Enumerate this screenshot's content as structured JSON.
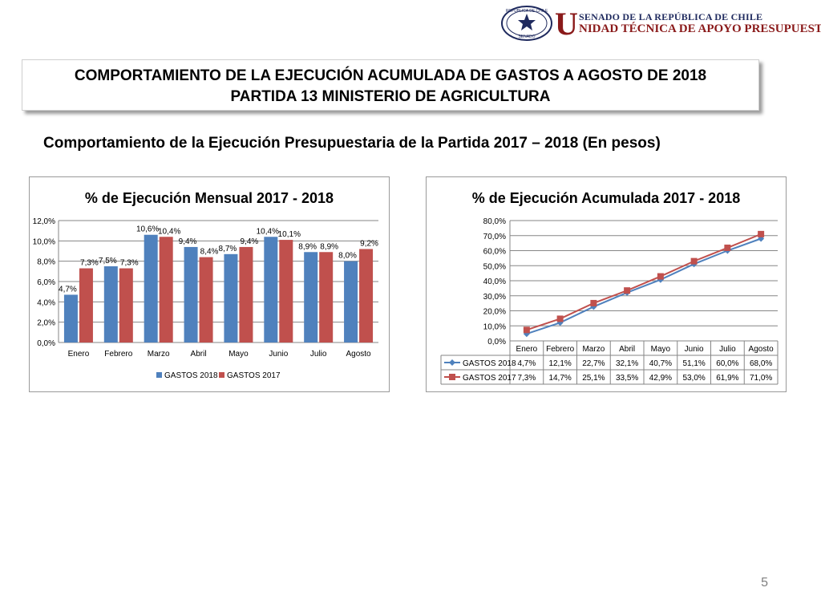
{
  "header": {
    "senado": "SENADO DE LA REPÚBLICA DE CHILE",
    "unit_initial": "U",
    "unit_rest": "NIDAD TÉCNICA DE APOYO PRESUPUESTARIO",
    "seal_top": "REPÚBLICA DE CHILE",
    "seal_bottom": "SENADO"
  },
  "title": {
    "line1": "COMPORTAMIENTO DE LA EJECUCIÓN ACUMULADA DE GASTOS A AGOSTO DE 2018",
    "line2": "PARTIDA 13 MINISTERIO DE AGRICULTURA"
  },
  "subtitle": "Comportamiento de la Ejecución Presupuestaria de la Partida 2017 – 2018 (En pesos)",
  "page_number": "5",
  "colors": {
    "gastos_2018": "#4f81bd",
    "gastos_2017": "#c0504d",
    "grid": "#868686"
  },
  "chart_data": [
    {
      "type": "bar",
      "title": "% de Ejecución Mensual 2017 - 2018",
      "categories": [
        "Enero",
        "Febrero",
        "Marzo",
        "Abril",
        "Mayo",
        "Junio",
        "Julio",
        "Agosto"
      ],
      "series": [
        {
          "name": "GASTOS 2018",
          "values": [
            4.7,
            7.5,
            10.6,
            9.4,
            8.7,
            10.4,
            8.9,
            8.0
          ],
          "labels": [
            "4,7%",
            "7,5%",
            "10,6%",
            "9,4%",
            "8,7%",
            "10,4%",
            "8,9%",
            "8,0%"
          ]
        },
        {
          "name": "GASTOS 2017",
          "values": [
            7.3,
            7.3,
            10.4,
            8.4,
            9.4,
            10.1,
            8.9,
            9.2
          ],
          "labels": [
            "7,3%",
            "7,3%",
            "10,4%",
            "8,4%",
            "9,4%",
            "10,1%",
            "8,9%",
            "9,2%"
          ]
        }
      ],
      "ylim": [
        0,
        12
      ],
      "yticks": [
        0,
        2,
        4,
        6,
        8,
        10,
        12
      ],
      "ytick_labels": [
        "0,0%",
        "2,0%",
        "4,0%",
        "6,0%",
        "8,0%",
        "10,0%",
        "12,0%"
      ],
      "grid": true,
      "legend": "bottom"
    },
    {
      "type": "line",
      "title": "% de Ejecución Acumulada 2017 - 2018",
      "categories": [
        "Enero",
        "Febrero",
        "Marzo",
        "Abril",
        "Mayo",
        "Junio",
        "Julio",
        "Agosto"
      ],
      "series": [
        {
          "name": "GASTOS 2018",
          "values": [
            4.7,
            12.1,
            22.7,
            32.1,
            40.7,
            51.1,
            60.0,
            68.0
          ],
          "labels": [
            "4,7%",
            "12,1%",
            "22,7%",
            "32,1%",
            "40,7%",
            "51,1%",
            "60,0%",
            "68,0%"
          ],
          "marker": "diamond"
        },
        {
          "name": "GASTOS 2017",
          "values": [
            7.3,
            14.7,
            25.1,
            33.5,
            42.9,
            53.0,
            61.9,
            71.0
          ],
          "labels": [
            "7,3%",
            "14,7%",
            "25,1%",
            "33,5%",
            "42,9%",
            "53,0%",
            "61,9%",
            "71,0%"
          ],
          "marker": "square"
        }
      ],
      "ylim": [
        0,
        80
      ],
      "yticks": [
        0,
        10,
        20,
        30,
        40,
        50,
        60,
        70,
        80
      ],
      "ytick_labels": [
        "0,0%",
        "10,0%",
        "20,0%",
        "30,0%",
        "40,0%",
        "50,0%",
        "60,0%",
        "70,0%",
        "80,0%"
      ],
      "grid": true,
      "legend": "data table"
    }
  ]
}
